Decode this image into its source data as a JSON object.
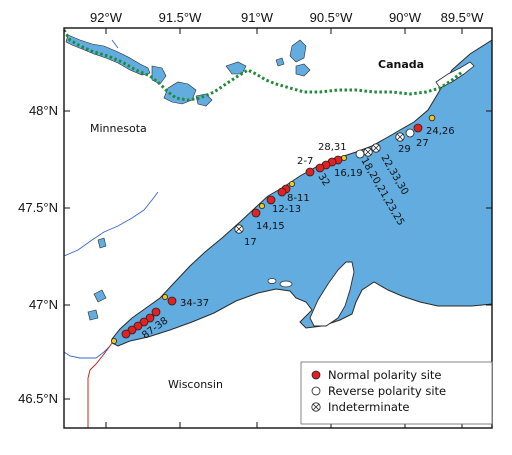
{
  "colors": {
    "lake": "#62acdf",
    "lake_outline": "#2a2a2a",
    "border": "#1f8a3a",
    "river": "#3a67c8",
    "state_line": "#d52020",
    "normal_site": "#e02222",
    "reverse_site": "#ffffff",
    "minor_site": "#f2c81e"
  },
  "axes": {
    "longitude_ticks": [
      "92°W",
      "91.5°W",
      "91°W",
      "90.5°W",
      "90°W",
      "89.5°W"
    ],
    "latitude_ticks": [
      "48°N",
      "47.5°N",
      "47°N",
      "46.5°N"
    ]
  },
  "places": {
    "canada": "Canada",
    "minnesota": "Minnesota",
    "wisconsin": "Wisconsin"
  },
  "site_labels": {
    "s24_26": "24,26",
    "s27": "27",
    "s29": "29",
    "s28_31": "28,31",
    "s2_7": "2-7",
    "s16_19": "16,19",
    "s32": "32",
    "s18_25": "18,20,21,23,25",
    "s22_33": "22,33,30",
    "s8_11": "8-11",
    "s12_13": "12-13",
    "s14_15": "14,15",
    "s17": "17",
    "s34_37": "34-37",
    "s87_38": "87-38"
  },
  "legend": {
    "normal": "Normal polarity site",
    "reverse": "Reverse polarity site",
    "indeterminate": "Indeterminate"
  }
}
